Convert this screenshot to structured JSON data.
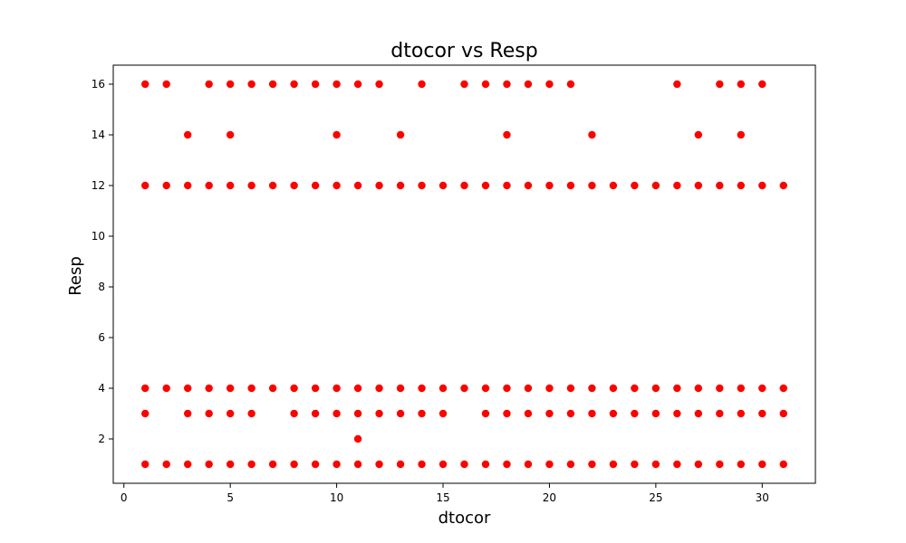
{
  "chart_data": {
    "type": "scatter",
    "title": "dtocor vs Resp",
    "xlabel": "dtocor",
    "ylabel": "Resp",
    "xlim": [
      -0.5,
      32.5
    ],
    "ylim": [
      0.25,
      16.75
    ],
    "xticks": [
      0,
      5,
      10,
      15,
      20,
      25,
      30
    ],
    "yticks": [
      2,
      4,
      6,
      8,
      10,
      12,
      14,
      16
    ],
    "grid": false,
    "marker_color": "#ff0000",
    "series": [
      {
        "points": [
          [
            1,
            16
          ],
          [
            2,
            16
          ],
          [
            4,
            16
          ],
          [
            5,
            16
          ],
          [
            6,
            16
          ],
          [
            7,
            16
          ],
          [
            8,
            16
          ],
          [
            9,
            16
          ],
          [
            10,
            16
          ],
          [
            11,
            16
          ],
          [
            12,
            16
          ],
          [
            14,
            16
          ],
          [
            16,
            16
          ],
          [
            17,
            16
          ],
          [
            18,
            16
          ],
          [
            19,
            16
          ],
          [
            20,
            16
          ],
          [
            21,
            16
          ],
          [
            26,
            16
          ],
          [
            28,
            16
          ],
          [
            29,
            16
          ],
          [
            30,
            16
          ],
          [
            3,
            14
          ],
          [
            5,
            14
          ],
          [
            10,
            14
          ],
          [
            13,
            14
          ],
          [
            18,
            14
          ],
          [
            22,
            14
          ],
          [
            27,
            14
          ],
          [
            29,
            14
          ],
          [
            1,
            12
          ],
          [
            2,
            12
          ],
          [
            3,
            12
          ],
          [
            4,
            12
          ],
          [
            5,
            12
          ],
          [
            6,
            12
          ],
          [
            7,
            12
          ],
          [
            8,
            12
          ],
          [
            9,
            12
          ],
          [
            10,
            12
          ],
          [
            11,
            12
          ],
          [
            12,
            12
          ],
          [
            13,
            12
          ],
          [
            14,
            12
          ],
          [
            15,
            12
          ],
          [
            16,
            12
          ],
          [
            17,
            12
          ],
          [
            18,
            12
          ],
          [
            19,
            12
          ],
          [
            20,
            12
          ],
          [
            21,
            12
          ],
          [
            22,
            12
          ],
          [
            23,
            12
          ],
          [
            24,
            12
          ],
          [
            25,
            12
          ],
          [
            26,
            12
          ],
          [
            27,
            12
          ],
          [
            28,
            12
          ],
          [
            29,
            12
          ],
          [
            30,
            12
          ],
          [
            31,
            12
          ],
          [
            1,
            4
          ],
          [
            2,
            4
          ],
          [
            3,
            4
          ],
          [
            4,
            4
          ],
          [
            5,
            4
          ],
          [
            6,
            4
          ],
          [
            7,
            4
          ],
          [
            8,
            4
          ],
          [
            9,
            4
          ],
          [
            10,
            4
          ],
          [
            11,
            4
          ],
          [
            12,
            4
          ],
          [
            13,
            4
          ],
          [
            14,
            4
          ],
          [
            15,
            4
          ],
          [
            16,
            4
          ],
          [
            17,
            4
          ],
          [
            18,
            4
          ],
          [
            19,
            4
          ],
          [
            20,
            4
          ],
          [
            21,
            4
          ],
          [
            22,
            4
          ],
          [
            23,
            4
          ],
          [
            24,
            4
          ],
          [
            25,
            4
          ],
          [
            26,
            4
          ],
          [
            27,
            4
          ],
          [
            28,
            4
          ],
          [
            29,
            4
          ],
          [
            30,
            4
          ],
          [
            31,
            4
          ],
          [
            1,
            3
          ],
          [
            3,
            3
          ],
          [
            4,
            3
          ],
          [
            5,
            3
          ],
          [
            6,
            3
          ],
          [
            8,
            3
          ],
          [
            9,
            3
          ],
          [
            10,
            3
          ],
          [
            11,
            3
          ],
          [
            12,
            3
          ],
          [
            13,
            3
          ],
          [
            14,
            3
          ],
          [
            15,
            3
          ],
          [
            17,
            3
          ],
          [
            18,
            3
          ],
          [
            19,
            3
          ],
          [
            20,
            3
          ],
          [
            21,
            3
          ],
          [
            22,
            3
          ],
          [
            23,
            3
          ],
          [
            24,
            3
          ],
          [
            25,
            3
          ],
          [
            26,
            3
          ],
          [
            27,
            3
          ],
          [
            28,
            3
          ],
          [
            29,
            3
          ],
          [
            30,
            3
          ],
          [
            31,
            3
          ],
          [
            11,
            2
          ],
          [
            1,
            1
          ],
          [
            2,
            1
          ],
          [
            3,
            1
          ],
          [
            4,
            1
          ],
          [
            5,
            1
          ],
          [
            6,
            1
          ],
          [
            7,
            1
          ],
          [
            8,
            1
          ],
          [
            9,
            1
          ],
          [
            10,
            1
          ],
          [
            11,
            1
          ],
          [
            12,
            1
          ],
          [
            13,
            1
          ],
          [
            14,
            1
          ],
          [
            15,
            1
          ],
          [
            16,
            1
          ],
          [
            17,
            1
          ],
          [
            18,
            1
          ],
          [
            19,
            1
          ],
          [
            20,
            1
          ],
          [
            21,
            1
          ],
          [
            22,
            1
          ],
          [
            23,
            1
          ],
          [
            24,
            1
          ],
          [
            25,
            1
          ],
          [
            26,
            1
          ],
          [
            27,
            1
          ],
          [
            28,
            1
          ],
          [
            29,
            1
          ],
          [
            30,
            1
          ],
          [
            31,
            1
          ]
        ]
      }
    ]
  }
}
